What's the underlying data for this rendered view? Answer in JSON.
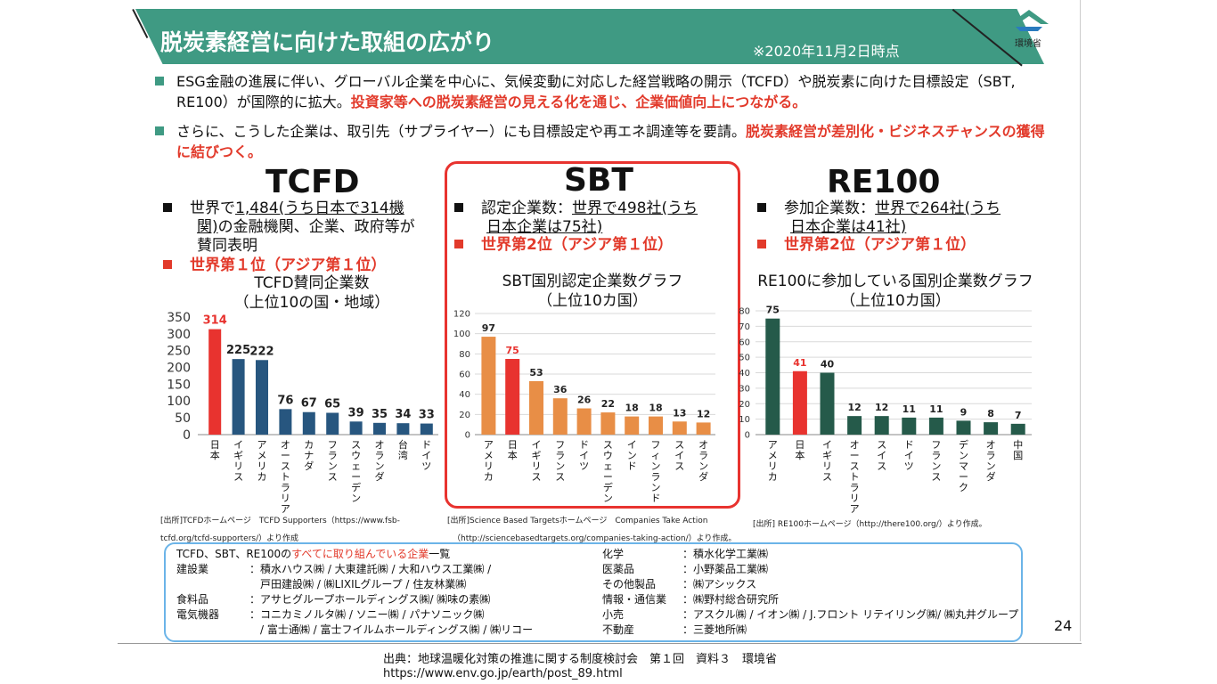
{
  "header": {
    "title": "脱炭素経営に向けた取組の広がり",
    "date_note": "※2020年11月2日時点",
    "logo_text": "環境省"
  },
  "bullets": [
    {
      "normal": "ESG金融の進展に伴い、グローバル企業を中心に、気候変動に対応した経営戦略の開示（TCFD）や脱炭素に向けた目標設定（SBT, RE100）が国際的に拡大。",
      "red": "投資家等への脱炭素経営の見える化を通じ、企業価値向上につながる。"
    },
    {
      "normal": "さらに、こうした企業は、取引先（サプライヤー）にも目標設定や再エネ調達等を要請。",
      "red": "脱炭素経営が差別化・ビジネスチャンスの獲得に結びつく。"
    }
  ],
  "tcfd": {
    "head": "TCFD",
    "line1": "世界で",
    "line1_u": "1,484(うち日本で314機",
    "line2_u": "関)",
    "line2": "の金融機関、企業、政府等が",
    "line3": "賛同表明",
    "rank": "世界第１位（アジア第１位）",
    "chart_title_1": "TCFD賛同企業数",
    "chart_title_2": "（上位10の国・地域）",
    "source_1": "[出所]TCFDホームページ　TCFD Supporters（https://www.fsb-",
    "source_2": "tcfd.org/tcfd-supporters/）より作成"
  },
  "sbt": {
    "head": "SBT",
    "line1": "認定企業数：",
    "line1_u": "世界で498社(うち",
    "line2_u": "日本企業は75社)",
    "rank": "世界第2位（アジア第１位）",
    "chart_title_1": "SBT国別認定企業数グラフ",
    "chart_title_2": "（上位10カ国）",
    "source_1": "[出所]Science Based Targetsホームページ　Companies Take Action",
    "source_2": "（http://sciencebasedtargets.org/companies-taking-action/）より作成。"
  },
  "re100": {
    "head": "RE100",
    "line1": "参加企業数：",
    "line1_u": "世界で264社(うち",
    "line2_u": "日本企業は41社)",
    "rank": "世界第2位（アジア第１位）",
    "chart_title_1": "RE100に参加している国別企業数グラフ",
    "chart_title_2": "（上位10カ国）",
    "source_1": "[出所] RE100ホームページ（http://there100.org/）より作成。"
  },
  "chart_data": [
    {
      "type": "bar",
      "categories": [
        "日本",
        "イギリス",
        "アメリカ",
        "オーストラリア",
        "カナダ",
        "フランス",
        "スウェーデン",
        "オランダ",
        "台湾",
        "ドイツ"
      ],
      "values": [
        314,
        225,
        222,
        76,
        67,
        65,
        39,
        35,
        34,
        33
      ],
      "highlight_index": 0,
      "ylim": [
        0,
        350
      ],
      "yticks": [
        0,
        50,
        100,
        150,
        200,
        250,
        300,
        350
      ],
      "grid": false,
      "colors": {
        "bar": "#27567f",
        "highlight": "#e8332f"
      }
    },
    {
      "type": "bar",
      "categories": [
        "アメリカ",
        "日本",
        "イギリス",
        "フランス",
        "ドイツ",
        "スウェーデン",
        "インド",
        "フィンランド",
        "スイス",
        "オランダ"
      ],
      "values": [
        97,
        75,
        53,
        36,
        26,
        22,
        18,
        18,
        13,
        12
      ],
      "highlight_index": 1,
      "ylim": [
        0,
        120
      ],
      "yticks": [
        0,
        20,
        40,
        60,
        80,
        100,
        120
      ],
      "grid": true,
      "colors": {
        "bar": "#e88e46",
        "highlight": "#e8332f"
      }
    },
    {
      "type": "bar",
      "categories": [
        "アメリカ",
        "日本",
        "イギリス",
        "オーストラリア",
        "スイス",
        "ドイツ",
        "フランス",
        "デンマーク",
        "オランダ",
        "中国"
      ],
      "values": [
        75,
        41,
        40,
        12,
        12,
        11,
        11,
        9,
        8,
        7
      ],
      "highlight_index": 1,
      "ylim": [
        0,
        80
      ],
      "yticks": [
        0,
        10,
        20,
        30,
        40,
        50,
        60,
        70,
        80
      ],
      "grid": true,
      "colors": {
        "bar": "#255a4a",
        "highlight": "#e8332f"
      }
    }
  ],
  "company_list": {
    "title": "TCFD、SBT、RE100の",
    "title_red": "すべてに取り組んでいる企業",
    "title_end": "一覧",
    "left": [
      {
        "cat": "建設業",
        "sep": "：",
        "list": "積水ハウス㈱ / 大東建託㈱ / 大和ハウス工業㈱ /"
      },
      {
        "cat": "",
        "sep": "",
        "list": "戸田建設㈱ / ㈱LIXILグループ / 住友林業㈱"
      },
      {
        "cat": "食料品",
        "sep": "：",
        "list": "アサヒグループホールディングス㈱/ ㈱味の素㈱"
      },
      {
        "cat": "電気機器",
        "sep": "：",
        "list": "コニカミノルタ㈱ / ソニー㈱ / パナソニック㈱"
      },
      {
        "cat": "",
        "sep": "",
        "list": "/ 富士通㈱ / 富士フイルムホールディングス㈱ / ㈱リコー"
      }
    ],
    "right": [
      {
        "cat": "化学",
        "sep": "：",
        "list": "積水化学工業㈱"
      },
      {
        "cat": "医薬品",
        "sep": "：",
        "list": "小野薬品工業㈱"
      },
      {
        "cat": "その他製品",
        "sep": "：",
        "list": "㈱アシックス"
      },
      {
        "cat": "情報・通信業",
        "sep": "：",
        "list": "㈱野村総合研究所"
      },
      {
        "cat": "小売",
        "sep": "：",
        "list": "アスクル㈱ / イオン㈱ / J.フロント リテイリング㈱/ ㈱丸井グループ"
      },
      {
        "cat": "不動産",
        "sep": "：",
        "list": "三菱地所㈱"
      }
    ]
  },
  "page_number": "24",
  "citation": {
    "line1": "出典：地球温暖化対策の推進に関する制度検討会　第１回　資料３　環境省",
    "line2": "https://www.env.go.jp/earth/post_89.html"
  }
}
